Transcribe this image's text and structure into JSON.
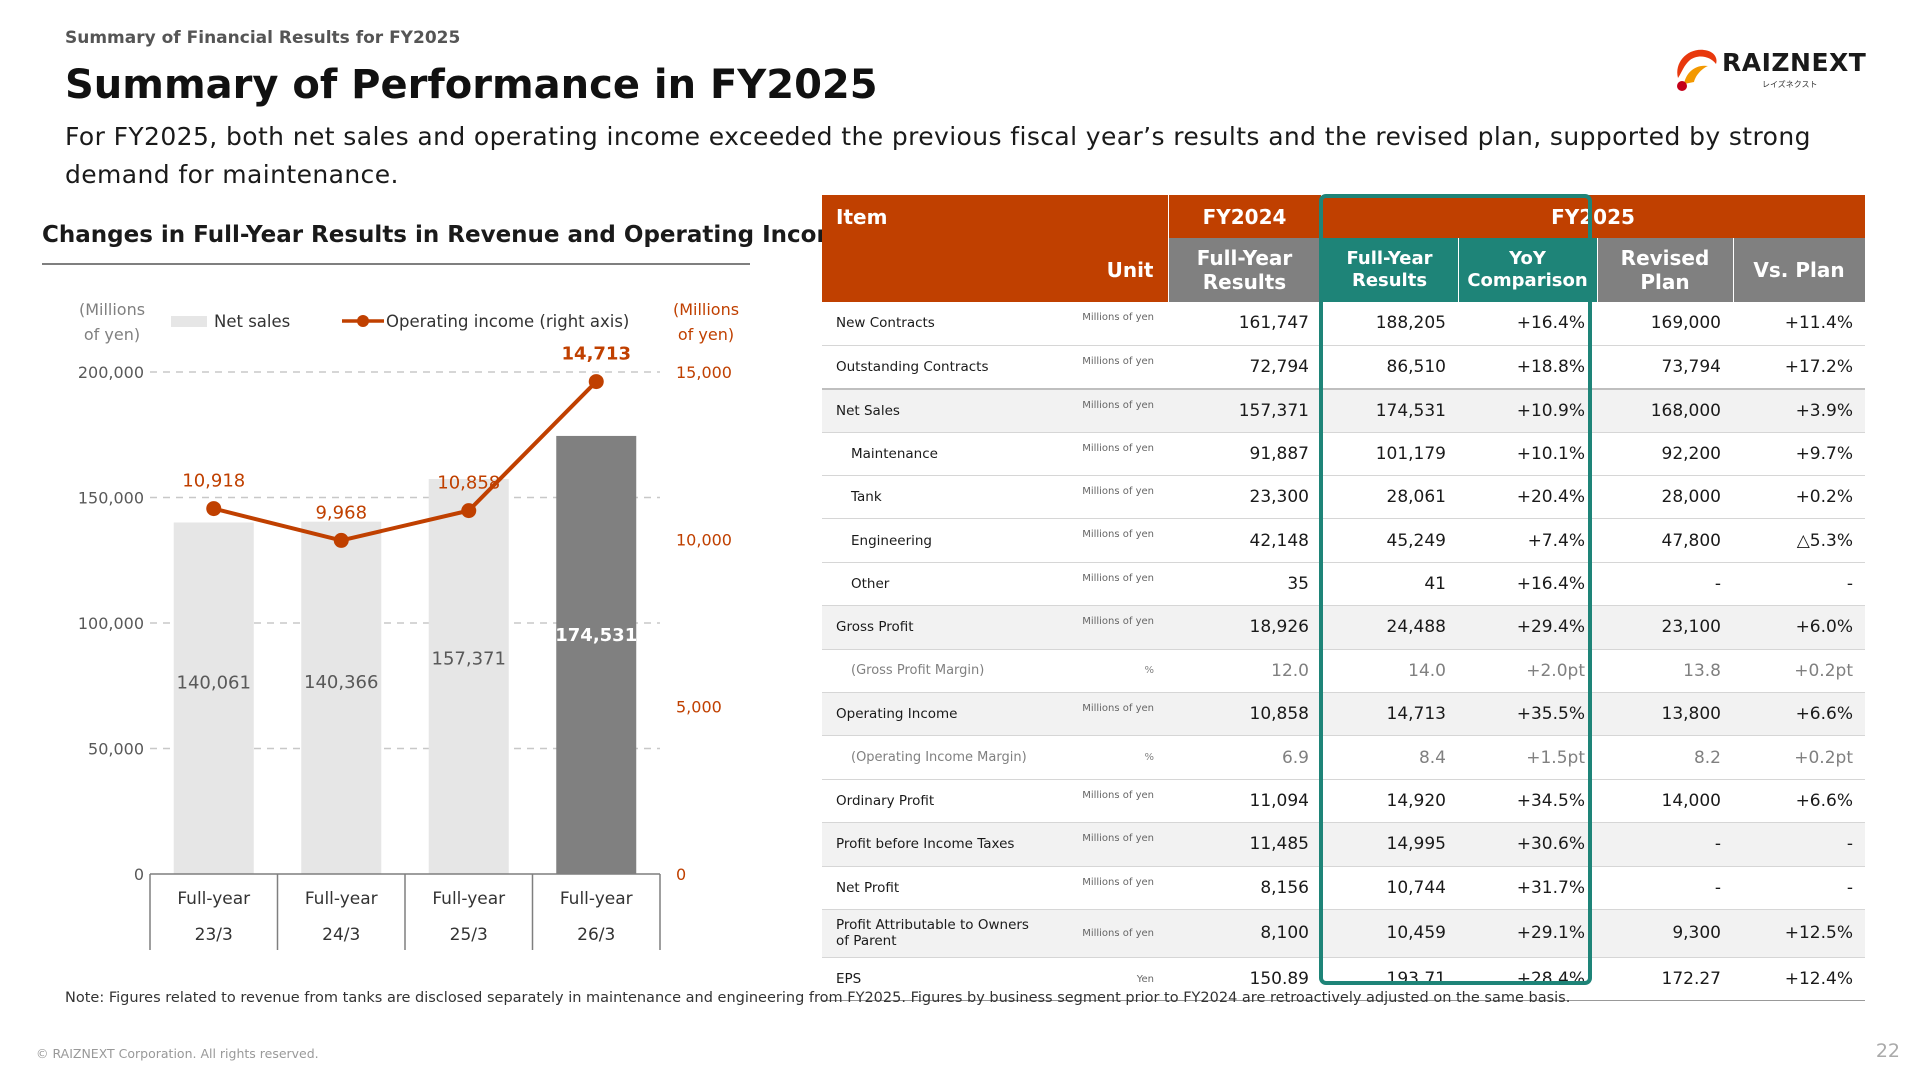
{
  "header": {
    "kicker": "Summary of Financial Results for FY2025",
    "title": "Summary of Performance in FY2025",
    "subtitle": "For FY2025, both net sales and operating income exceeded the previous fiscal year’s results and the revised plan, supported by strong demand for maintenance."
  },
  "logo": {
    "text": "RAIZNEXT",
    "kana": "レイズネクスト"
  },
  "colors": {
    "accent": "#c04000",
    "teal": "#1e8478",
    "bar_light": "#e6e6e6",
    "bar_dark": "#808080",
    "header_gray": "#808080"
  },
  "chart_heading": "Changes in Full-Year Results in Revenue and Operating Income",
  "chart_data": {
    "type": "bar",
    "categories": [
      [
        "Full-year",
        "23/3"
      ],
      [
        "Full-year",
        "24/3"
      ],
      [
        "Full-year",
        "25/3"
      ],
      [
        "Full-year",
        "26/3"
      ]
    ],
    "series": [
      {
        "name": "Net sales",
        "type": "bar",
        "values": [
          140061,
          140366,
          157371,
          174531
        ],
        "labels": [
          "140,061",
          "140,366",
          "157,371",
          "174,531"
        ],
        "highlight_last": true
      },
      {
        "name": "Operating income (right axis)",
        "type": "line",
        "axis": "right",
        "values": [
          10918,
          9968,
          10858,
          14713
        ],
        "labels": [
          "10,918",
          "9,968",
          "10,858",
          "14,713"
        ]
      }
    ],
    "left_axis": {
      "unit": [
        "(Millions",
        "of yen)"
      ],
      "range": [
        0,
        200000
      ],
      "ticks": [
        "0",
        "50,000",
        "100,000",
        "150,000",
        "200,000"
      ]
    },
    "right_axis": {
      "unit": [
        "(Millions",
        "of yen)"
      ],
      "range": [
        0,
        15000
      ],
      "ticks": [
        "0",
        "5,000",
        "10,000",
        "15,000"
      ]
    },
    "grid": true,
    "legend": "top"
  },
  "table": {
    "header_row1": {
      "item": "Item",
      "fy2024": "FY2024",
      "fy2025": "FY2025"
    },
    "header_row2": {
      "unit": "Unit",
      "fy2024_results": [
        "Full-Year",
        "Results"
      ],
      "fy2025_results": [
        "Full-Year",
        "Results"
      ],
      "yoy": [
        "YoY",
        "Comparison"
      ],
      "revised_plan": [
        "Revised",
        "Plan"
      ],
      "vs_plan": "Vs. Plan"
    },
    "rows": [
      {
        "label": "New Contracts",
        "unit": "Millions of yen",
        "fy2024": "161,747",
        "fy2025": "188,205",
        "yoy": "+16.4%",
        "plan": "169,000",
        "vs_plan": "+11.4%"
      },
      {
        "label": "Outstanding Contracts",
        "unit": "Millions of yen",
        "fy2024": "72,794",
        "fy2025": "86,510",
        "yoy": "+18.8%",
        "plan": "73,794",
        "vs_plan": "+17.2%"
      },
      {
        "label": "Net Sales",
        "unit": "Millions of yen",
        "fy2024": "157,371",
        "fy2025": "174,531",
        "yoy": "+10.9%",
        "plan": "168,000",
        "vs_plan": "+3.9%"
      },
      {
        "label": "Maintenance",
        "unit": "Millions of yen",
        "fy2024": "91,887",
        "fy2025": "101,179",
        "yoy": "+10.1%",
        "plan": "92,200",
        "vs_plan": "+9.7%"
      },
      {
        "label": "Tank",
        "unit": "Millions of yen",
        "fy2024": "23,300",
        "fy2025": "28,061",
        "yoy": "+20.4%",
        "plan": "28,000",
        "vs_plan": "+0.2%"
      },
      {
        "label": "Engineering",
        "unit": "Millions of yen",
        "fy2024": "42,148",
        "fy2025": "45,249",
        "yoy": "+7.4%",
        "plan": "47,800",
        "vs_plan": "△5.3%"
      },
      {
        "label": "Other",
        "unit": "Millions of yen",
        "fy2024": "35",
        "fy2025": "41",
        "yoy": "+16.4%",
        "plan": "-",
        "vs_plan": "-"
      },
      {
        "label": "Gross Profit",
        "unit": "Millions of yen",
        "fy2024": "18,926",
        "fy2025": "24,488",
        "yoy": "+29.4%",
        "plan": "23,100",
        "vs_plan": "+6.0%"
      },
      {
        "label": "(Gross Profit Margin)",
        "unit": "%",
        "fy2024": "12.0",
        "fy2025": "14.0",
        "yoy": "+2.0pt",
        "plan": "13.8",
        "vs_plan": "+0.2pt"
      },
      {
        "label": "Operating Income",
        "unit": "Millions of yen",
        "fy2024": "10,858",
        "fy2025": "14,713",
        "yoy": "+35.5%",
        "plan": "13,800",
        "vs_plan": "+6.6%"
      },
      {
        "label": "(Operating Income Margin)",
        "unit": "%",
        "fy2024": "6.9",
        "fy2025": "8.4",
        "yoy": "+1.5pt",
        "plan": "8.2",
        "vs_plan": "+0.2pt"
      },
      {
        "label": "Ordinary Profit",
        "unit": "Millions of yen",
        "fy2024": "11,094",
        "fy2025": "14,920",
        "yoy": "+34.5%",
        "plan": "14,000",
        "vs_plan": "+6.6%"
      },
      {
        "label": "Profit before Income Taxes",
        "unit": "Millions of yen",
        "fy2024": "11,485",
        "fy2025": "14,995",
        "yoy": "+30.6%",
        "plan": "-",
        "vs_plan": "-"
      },
      {
        "label": "Net Profit",
        "unit": "Millions of yen",
        "fy2024": "8,156",
        "fy2025": "10,744",
        "yoy": "+31.7%",
        "plan": "-",
        "vs_plan": "-"
      },
      {
        "label": "Profit Attributable to Owners of Parent",
        "unit": "Millions of yen",
        "fy2024": "8,100",
        "fy2025": "10,459",
        "yoy": "+29.1%",
        "plan": "9,300",
        "vs_plan": "+12.5%"
      },
      {
        "label": "EPS",
        "unit": "Yen",
        "fy2024": "150.89",
        "fy2025": "193.71",
        "yoy": "+28.4%",
        "plan": "172.27",
        "vs_plan": "+12.4%"
      }
    ]
  },
  "note": "Note: Figures related to revenue from tanks are disclosed separately in maintenance and engineering from FY2025. Figures by business segment prior to FY2024 are retroactively adjusted on the same basis.",
  "footer": {
    "copyright": "© RAIZNEXT Corporation. All rights reserved.",
    "page": "22"
  }
}
